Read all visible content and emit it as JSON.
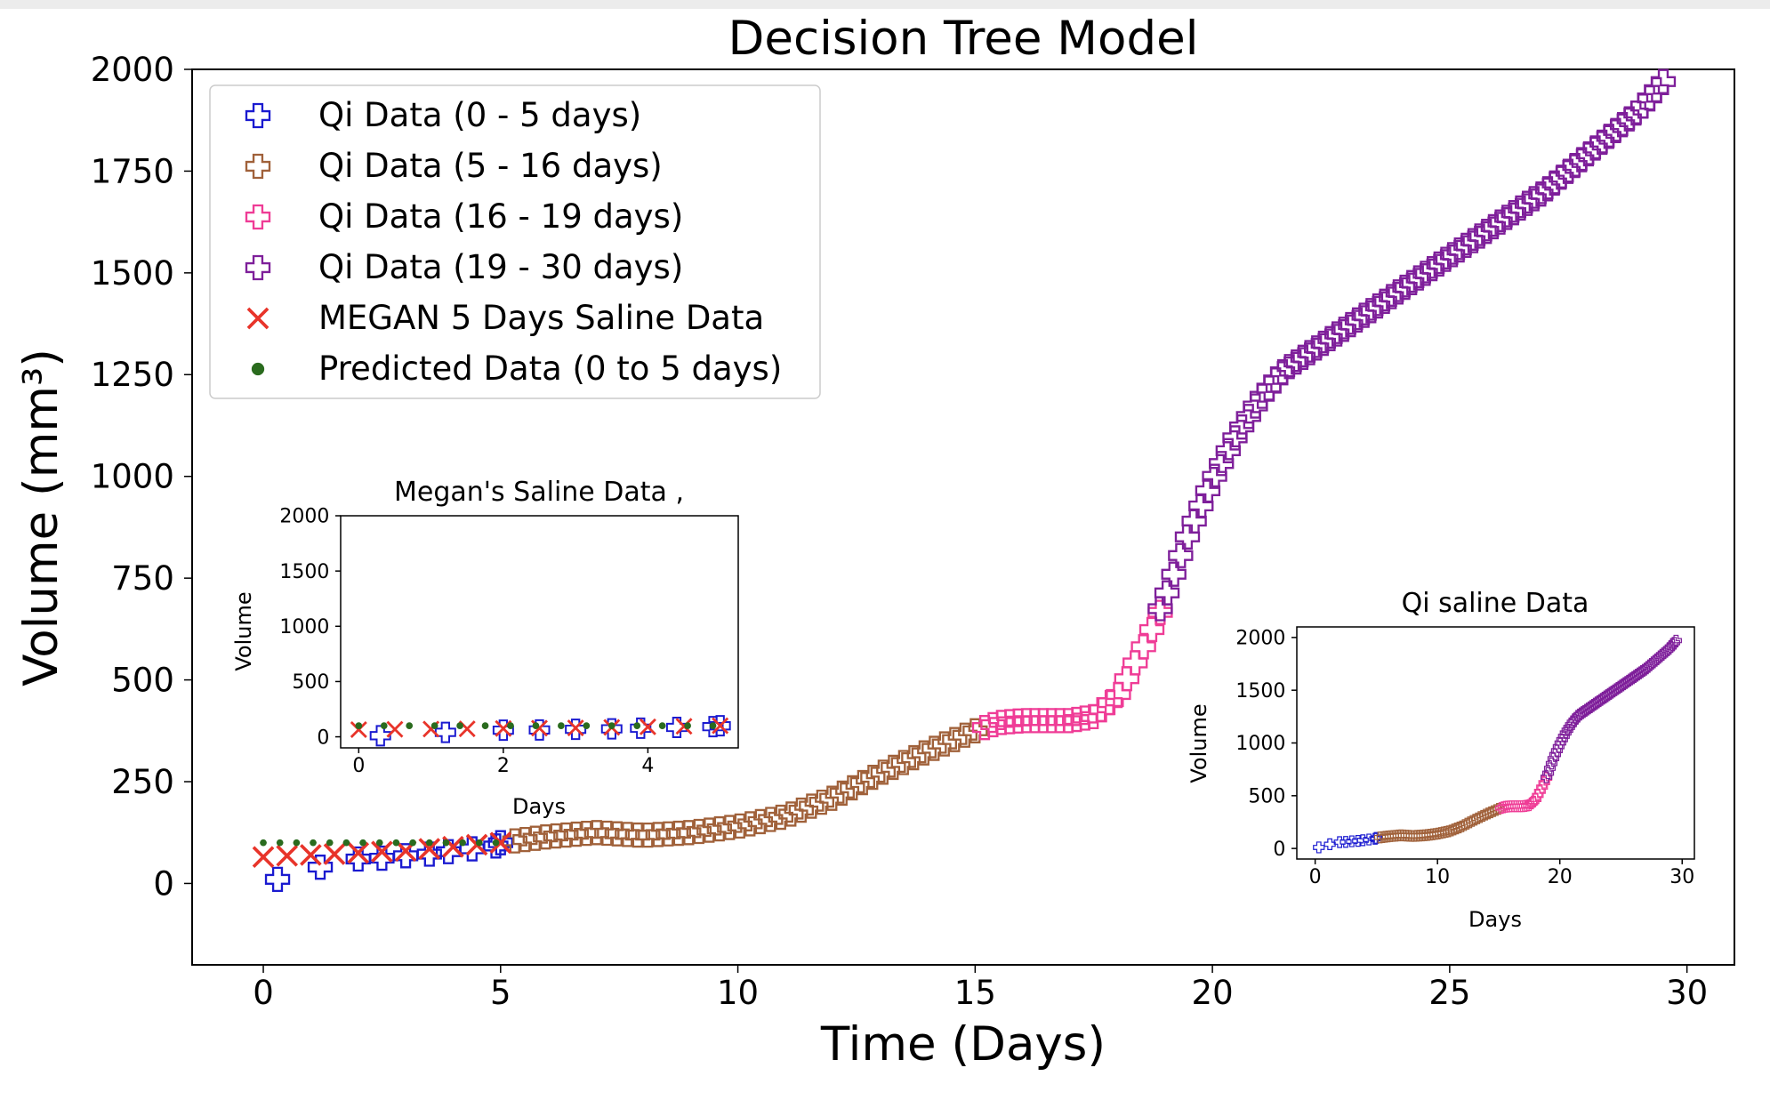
{
  "chart_data": {
    "type": "scatter",
    "title": "Decision Tree Model",
    "xlabel": "Time (Days)",
    "ylabel": "Volume (mm³)",
    "xlim": [
      -1.5,
      31
    ],
    "ylim": [
      -200,
      2000
    ],
    "xticks": [
      0,
      5,
      10,
      15,
      20,
      25,
      30
    ],
    "yticks": [
      0,
      250,
      500,
      750,
      1000,
      1250,
      1500,
      1750,
      2000
    ],
    "grid": false,
    "legend_position": "top-left",
    "legend": [
      {
        "label": "Qi Data (0 - 5 days)",
        "marker": "plus",
        "color": "#1a1ad0"
      },
      {
        "label": "Qi Data (5 - 16 days)",
        "marker": "plus",
        "color": "#a0613a"
      },
      {
        "label": "Qi Data (16 - 19 days)",
        "marker": "plus",
        "color": "#ef3c96"
      },
      {
        "label": "Qi Data (19 - 30 days)",
        "marker": "plus",
        "color": "#7e1f9a"
      },
      {
        "label": "MEGAN 5 Days Saline Data",
        "marker": "x",
        "color": "#e8342a"
      },
      {
        "label": "Predicted Data (0 to 5 days)",
        "marker": "dot",
        "color": "#2a6b1e"
      }
    ],
    "series": [
      {
        "name": "Qi Data (0 - 5 days)",
        "marker": "plus",
        "color": "#1a1ad0",
        "x": [
          0.3,
          1.2,
          2.0,
          2.5,
          3.0,
          3.5,
          3.9,
          4.4,
          4.9,
          5.0
        ],
        "y": [
          10,
          40,
          60,
          62,
          68,
          72,
          78,
          85,
          92,
          100
        ]
      },
      {
        "name": "Qi Data (5 - 16 days)",
        "marker": "plus",
        "color": "#a0613a",
        "curve": {
          "x": [
            5,
            6,
            7,
            8,
            9,
            10,
            11,
            12,
            13,
            14,
            15
          ],
          "y": [
            100,
            115,
            125,
            118,
            125,
            140,
            165,
            210,
            270,
            325,
            375
          ]
        },
        "range": [
          5.3,
          15.0
        ],
        "n": 46
      },
      {
        "name": "Qi Data (16 - 19 days)",
        "marker": "plus",
        "color": "#ef3c96",
        "curve": {
          "x": [
            15.0,
            15.5,
            16.0,
            16.5,
            17.0,
            17.5,
            18.0,
            18.5,
            19.0
          ],
          "y": [
            375,
            395,
            400,
            400,
            400,
            410,
            460,
            570,
            690
          ]
        },
        "range": [
          15.2,
          18.9
        ],
        "n": 22
      },
      {
        "name": "Qi Data (19 - 30 days)",
        "marker": "plus",
        "color": "#7e1f9a",
        "curve": {
          "x": [
            18.8,
            19.0,
            19.5,
            20.0,
            20.5,
            21.0,
            21.5,
            22.0,
            23.0,
            24.0,
            25.0,
            26.0,
            27.0,
            28.0,
            29.0,
            29.5
          ],
          "y": [
            650,
            700,
            860,
            990,
            1100,
            1190,
            1260,
            1300,
            1380,
            1460,
            1540,
            1620,
            1700,
            1800,
            1900,
            1970
          ]
        },
        "range": [
          18.9,
          29.5
        ],
        "n": 75
      },
      {
        "name": "MEGAN 5 Days Saline Data",
        "marker": "x",
        "color": "#e8342a",
        "x": [
          0,
          0.5,
          1.0,
          1.5,
          2.0,
          2.5,
          3.0,
          3.5,
          4.0,
          4.5,
          5.0
        ],
        "y": [
          65,
          68,
          70,
          72,
          75,
          78,
          80,
          85,
          90,
          95,
          100
        ]
      },
      {
        "name": "Predicted Data (0 to 5 days)",
        "marker": "dot",
        "color": "#2a6b1e",
        "x": [
          0,
          0.35,
          0.7,
          1.05,
          1.4,
          1.75,
          2.1,
          2.45,
          2.8,
          3.15,
          3.5,
          3.85,
          4.2,
          4.55,
          4.9
        ],
        "y": [
          100,
          100,
          100,
          100,
          100,
          100,
          100,
          100,
          100,
          100,
          100,
          100,
          100,
          100,
          100
        ]
      }
    ]
  },
  "inset_megan": {
    "title": "Megan's Saline  Data ,",
    "xlabel": "Days",
    "ylabel": "Volume",
    "xlim": [
      -0.25,
      5.25
    ],
    "ylim": [
      -100,
      2000
    ],
    "xticks": [
      0,
      2,
      4
    ],
    "yticks": [
      0,
      500,
      1000,
      1500,
      2000
    ]
  },
  "inset_qi": {
    "title": "Qi saline Data",
    "xlabel": "Days",
    "ylabel": "Volume",
    "xlim": [
      -1.5,
      31
    ],
    "ylim": [
      -100,
      2100
    ],
    "xticks": [
      0,
      10,
      20,
      30
    ],
    "yticks": [
      0,
      500,
      1000,
      1500,
      2000
    ]
  }
}
